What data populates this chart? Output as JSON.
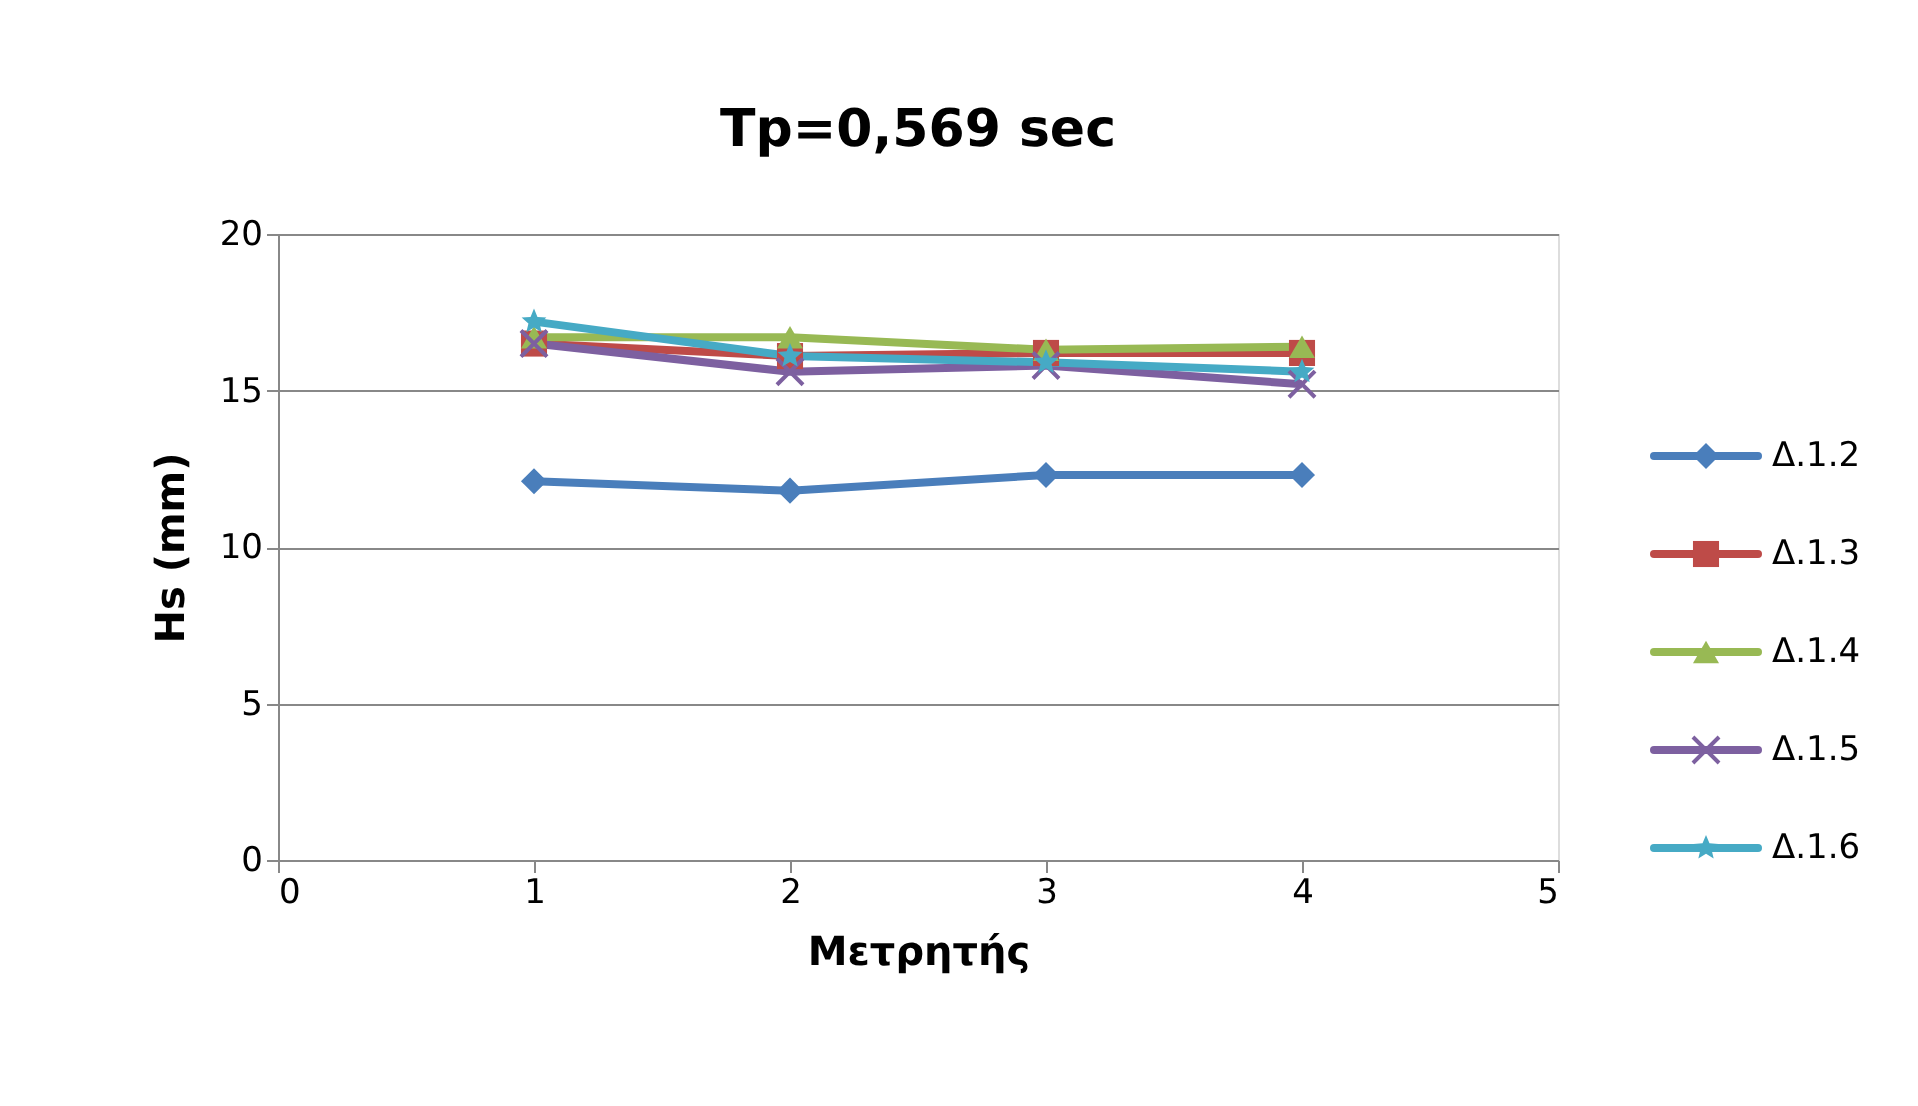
{
  "chart_data": {
    "type": "line",
    "title": "Tp=0,569 sec",
    "xlabel": "Μετρητής",
    "ylabel": "Hs (mm)",
    "x": [
      1,
      2,
      3,
      4
    ],
    "xlim": [
      0,
      5
    ],
    "xticks": [
      0,
      1,
      2,
      3,
      4,
      5
    ],
    "ylim": [
      0,
      20
    ],
    "yticks": [
      0,
      5,
      10,
      15,
      20
    ],
    "grid": "y",
    "legend": "right",
    "series": [
      {
        "name": "Δ.1.2",
        "color": "#4a7ebb",
        "marker": "diamond",
        "values": [
          12.1,
          11.8,
          12.3,
          12.3
        ]
      },
      {
        "name": "Δ.1.3",
        "color": "#be4b48",
        "marker": "square",
        "values": [
          16.5,
          16.1,
          16.2,
          16.2
        ]
      },
      {
        "name": "Δ.1.4",
        "color": "#98b954",
        "marker": "triangle",
        "values": [
          16.7,
          16.7,
          16.3,
          16.4
        ]
      },
      {
        "name": "Δ.1.5",
        "color": "#7d60a0",
        "marker": "cross",
        "values": [
          16.5,
          15.6,
          15.8,
          15.2
        ]
      },
      {
        "name": "Δ.1.6",
        "color": "#46aac5",
        "marker": "star",
        "values": [
          17.2,
          16.1,
          15.9,
          15.6
        ]
      }
    ]
  }
}
